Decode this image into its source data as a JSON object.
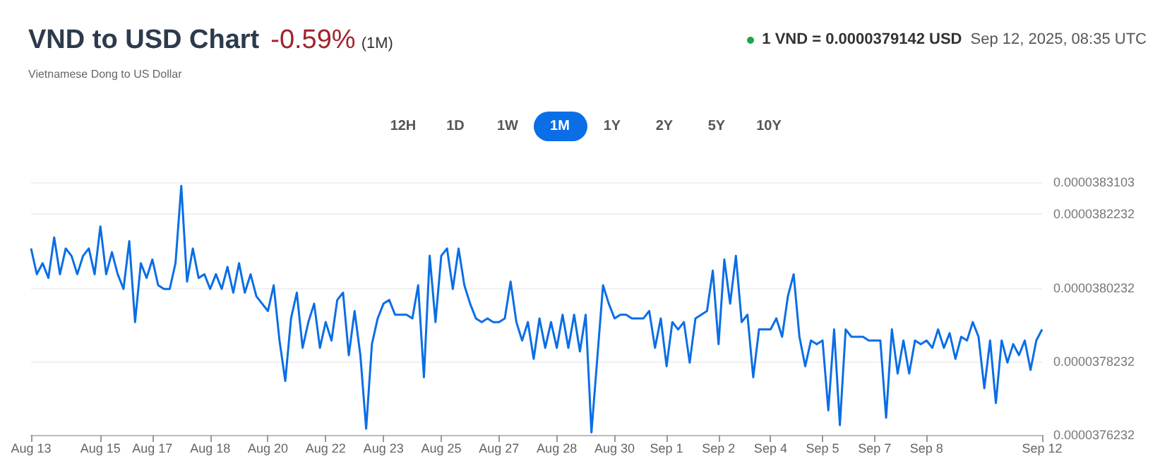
{
  "chart_data": {
    "type": "line",
    "title": "VND to USD Chart",
    "subtitle": "Vietnamese Dong to US Dollar",
    "annotations": [
      "-0.59%",
      "(1M)",
      "1 VND = 0.0000379142 USD",
      "Sep 12, 2025, 08:35 UTC",
      "12H",
      "1D",
      "1W",
      "1M",
      "1Y",
      "2Y",
      "5Y",
      "10Y"
    ],
    "categories": [
      "Aug 13",
      null,
      null,
      null,
      null,
      null,
      null,
      null,
      null,
      null,
      null,
      null,
      "Aug 15",
      null,
      null,
      null,
      null,
      null,
      null,
      null,
      null,
      "Aug 17",
      null,
      null,
      null,
      null,
      null,
      null,
      null,
      null,
      null,
      "Aug 18",
      null,
      null,
      null,
      null,
      null,
      null,
      null,
      null,
      null,
      "Aug 20",
      null,
      null,
      null,
      null,
      null,
      null,
      null,
      null,
      null,
      "Aug 22",
      null,
      null,
      null,
      null,
      null,
      null,
      null,
      null,
      null,
      "Aug 23",
      null,
      null,
      null,
      null,
      null,
      null,
      null,
      null,
      null,
      "Aug 25",
      null,
      null,
      null,
      null,
      null,
      null,
      null,
      null,
      null,
      "Aug 27",
      null,
      null,
      null,
      null,
      null,
      null,
      null,
      null,
      null,
      "Aug 28",
      null,
      null,
      null,
      null,
      null,
      null,
      null,
      null,
      null,
      "Aug 30",
      null,
      null,
      null,
      null,
      null,
      null,
      null,
      null,
      "Sep 1",
      null,
      null,
      null,
      null,
      null,
      null,
      null,
      null,
      "Sep 2",
      null,
      null,
      null,
      null,
      null,
      null,
      null,
      null,
      "Sep 4",
      null,
      null,
      null,
      null,
      null,
      null,
      null,
      null,
      "Sep 5",
      null,
      null,
      null,
      null,
      null,
      null,
      null,
      null,
      "Sep 7",
      null,
      null,
      null,
      null,
      null,
      null,
      null,
      null,
      "Sep 8",
      null,
      null,
      null,
      null,
      null,
      null,
      null,
      null,
      null,
      null,
      null,
      null,
      null,
      null,
      null,
      null,
      null,
      null,
      null,
      "Sep 12"
    ],
    "values": [
      3.813e-05,
      3.806e-05,
      3.809e-05,
      3.805e-05,
      3.816e-05,
      3.806e-05,
      3.813e-05,
      3.811e-05,
      3.806e-05,
      3.811e-05,
      3.813e-05,
      3.806e-05,
      3.819e-05,
      3.806e-05,
      3.812e-05,
      3.806e-05,
      3.802e-05,
      3.815e-05,
      3.793e-05,
      3.809e-05,
      3.805e-05,
      3.81e-05,
      3.803e-05,
      3.802e-05,
      3.802e-05,
      3.809e-05,
      3.83e-05,
      3.804e-05,
      3.813e-05,
      3.805e-05,
      3.806e-05,
      3.802e-05,
      3.806e-05,
      3.802e-05,
      3.808e-05,
      3.801e-05,
      3.809e-05,
      3.801e-05,
      3.806e-05,
      3.8e-05,
      3.798e-05,
      3.796e-05,
      3.803e-05,
      3.788e-05,
      3.777e-05,
      3.794e-05,
      3.801e-05,
      3.786e-05,
      3.793e-05,
      3.798e-05,
      3.786e-05,
      3.793e-05,
      3.788e-05,
      3.799e-05,
      3.801e-05,
      3.784e-05,
      3.796e-05,
      3.784e-05,
      3.764e-05,
      3.787e-05,
      3.794e-05,
      3.798e-05,
      3.799e-05,
      3.795e-05,
      3.795e-05,
      3.795e-05,
      3.794e-05,
      3.803e-05,
      3.778e-05,
      3.811e-05,
      3.793e-05,
      3.811e-05,
      3.813e-05,
      3.802e-05,
      3.813e-05,
      3.803e-05,
      3.798e-05,
      3.794e-05,
      3.793e-05,
      3.794e-05,
      3.793e-05,
      3.793e-05,
      3.794e-05,
      3.804e-05,
      3.793e-05,
      3.788e-05,
      3.793e-05,
      3.783e-05,
      3.794e-05,
      3.786e-05,
      3.793e-05,
      3.786e-05,
      3.795e-05,
      3.786e-05,
      3.795e-05,
      3.785e-05,
      3.795e-05,
      3.763e-05,
      3.783e-05,
      3.803e-05,
      3.798e-05,
      3.794e-05,
      3.795e-05,
      3.795e-05,
      3.794e-05,
      3.794e-05,
      3.794e-05,
      3.796e-05,
      3.786e-05,
      3.794e-05,
      3.781e-05,
      3.793e-05,
      3.791e-05,
      3.793e-05,
      3.782e-05,
      3.794e-05,
      3.795e-05,
      3.796e-05,
      3.807e-05,
      3.787e-05,
      3.81e-05,
      3.798e-05,
      3.811e-05,
      3.793e-05,
      3.795e-05,
      3.778e-05,
      3.791e-05,
      3.791e-05,
      3.791e-05,
      3.794e-05,
      3.789e-05,
      3.8e-05,
      3.806e-05,
      3.789e-05,
      3.781e-05,
      3.788e-05,
      3.787e-05,
      3.788e-05,
      3.769e-05,
      3.791e-05,
      3.765e-05,
      3.791e-05,
      3.789e-05,
      3.789e-05,
      3.789e-05,
      3.788e-05,
      3.788e-05,
      3.788e-05,
      3.767e-05,
      3.791e-05,
      3.779e-05,
      3.788e-05,
      3.779e-05,
      3.788e-05,
      3.787e-05,
      3.788e-05,
      3.786e-05,
      3.791e-05,
      3.786e-05,
      3.79e-05,
      3.783e-05,
      3.789e-05,
      3.788e-05,
      3.793e-05,
      3.789e-05,
      3.775e-05,
      3.788e-05,
      3.771e-05,
      3.788e-05,
      3.782e-05,
      3.787e-05,
      3.784e-05,
      3.788e-05,
      3.78e-05,
      3.788e-05,
      3.791e-05
    ],
    "color": "#0a6ee6",
    "ylim": [
      3.76232e-05,
      3.83103e-05
    ],
    "yticks": [
      {
        "value": 3.76232e-05,
        "label": "0.0000376232"
      },
      {
        "value": 3.78232e-05,
        "label": "0.0000378232"
      },
      {
        "value": 3.80232e-05,
        "label": "0.0000380232"
      },
      {
        "value": 3.82232e-05,
        "label": "0.0000382232"
      },
      {
        "value": 3.83103e-05,
        "label": "0.0000383103"
      }
    ],
    "grid": "y",
    "marker": "none",
    "line_style": "solid"
  }
}
